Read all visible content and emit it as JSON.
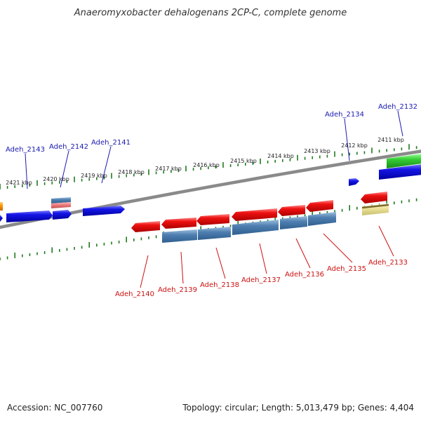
{
  "title": "Anaeromyxobacter dehalogenans 2CP-C, complete genome",
  "footer": {
    "accession": "Accession: NC_007760",
    "summary": "Topology: circular; Length: 5,013,479 bp; Genes: 4,404"
  },
  "colors": {
    "backbone": "#8a8a8a",
    "tick": "#1f7a1f",
    "forward_label": "#1a1ab0",
    "reverse_label": "#cc1111",
    "gene_red": "#ee1111",
    "gene_blue": "#1515e6",
    "gene_steel": "#4f7fb0",
    "gene_green": "#33cc33",
    "gene_orange": "#ff9900",
    "gene_pink": "#f08080",
    "gene_yellow": "#eee49a"
  },
  "ruler": [
    {
      "label": "2421 kbp"
    },
    {
      "label": "2420 kbp"
    },
    {
      "label": "2419 kbp"
    },
    {
      "label": "2418 kbp"
    },
    {
      "label": "2417 kbp"
    },
    {
      "label": "2416 kbp"
    },
    {
      "label": "2415 kbp"
    },
    {
      "label": "2414 kbp"
    },
    {
      "label": "2413 kbp"
    },
    {
      "label": "2412 kbp"
    },
    {
      "label": "2411 kbp"
    }
  ],
  "forward_labels": [
    {
      "name": "Adeh_2143"
    },
    {
      "name": "Adeh_2142"
    },
    {
      "name": "Adeh_2141"
    },
    {
      "name": "Adeh_2134"
    },
    {
      "name": "Adeh_2132"
    }
  ],
  "reverse_labels": [
    {
      "name": "Adeh_2140"
    },
    {
      "name": "Adeh_2139"
    },
    {
      "name": "Adeh_2138"
    },
    {
      "name": "Adeh_2137"
    },
    {
      "name": "Adeh_2136"
    },
    {
      "name": "Adeh_2135"
    },
    {
      "name": "Adeh_2133"
    }
  ],
  "genes": [
    {
      "icon": "gene-arrow-icon",
      "color": "orange",
      "strand": "+"
    },
    {
      "icon": "gene-arrow-icon",
      "color": "blue",
      "strand": "+"
    },
    {
      "icon": "gene-arrow-icon",
      "color": "blue",
      "strand": "+"
    },
    {
      "icon": "gene-block-icon",
      "color": "steel",
      "strand": "+"
    },
    {
      "icon": "gene-block-icon",
      "color": "pink",
      "strand": "+"
    },
    {
      "icon": "gene-arrow-icon",
      "color": "blue",
      "strand": "+"
    },
    {
      "icon": "gene-arrow-icon",
      "color": "blue",
      "strand": "+"
    },
    {
      "icon": "gene-arrow-icon",
      "color": "blue",
      "strand": "+"
    },
    {
      "icon": "gene-arrow-icon",
      "color": "green",
      "strand": "+"
    },
    {
      "icon": "gene-arrow-icon",
      "color": "blue",
      "strand": "+"
    },
    {
      "icon": "gene-arrow-icon",
      "color": "red",
      "strand": "-"
    },
    {
      "icon": "gene-arrow-icon",
      "color": "red",
      "strand": "-"
    },
    {
      "icon": "gene-arrow-icon",
      "color": "red",
      "strand": "-"
    },
    {
      "icon": "gene-arrow-icon",
      "color": "red",
      "strand": "-"
    },
    {
      "icon": "gene-arrow-icon",
      "color": "red",
      "strand": "-"
    },
    {
      "icon": "gene-arrow-icon",
      "color": "red",
      "strand": "-"
    },
    {
      "icon": "gene-arrow-icon",
      "color": "red",
      "strand": "-"
    },
    {
      "icon": "gene-block-icon",
      "color": "steel",
      "strand": "-"
    },
    {
      "icon": "gene-block-icon",
      "color": "steel",
      "strand": "-"
    },
    {
      "icon": "gene-block-icon",
      "color": "steel",
      "strand": "-"
    },
    {
      "icon": "gene-block-icon",
      "color": "steel",
      "strand": "-"
    },
    {
      "icon": "gene-block-icon",
      "color": "steel",
      "strand": "-"
    },
    {
      "icon": "gene-block-icon",
      "color": "yellow",
      "strand": "-"
    }
  ]
}
